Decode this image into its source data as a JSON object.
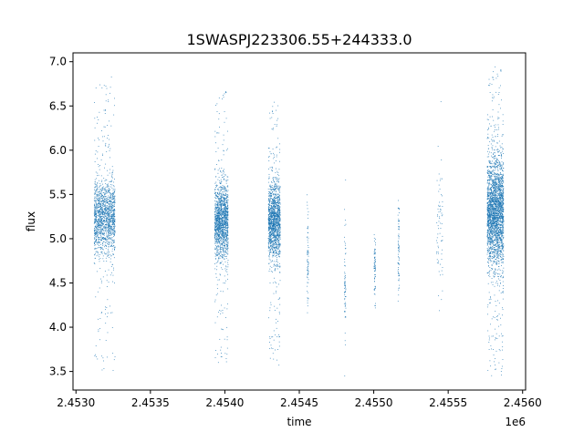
{
  "chart_data": {
    "type": "scatter",
    "title": "1SWASPJ223306.55+244333.0",
    "xlabel": "time",
    "ylabel": "flux",
    "x_offset_label": "1e6",
    "xlim": [
      2.45298,
      2.45602
    ],
    "ylim": [
      3.29,
      7.1
    ],
    "x_ticks": [
      2.453,
      2.4535,
      2.454,
      2.4545,
      2.455,
      2.4555,
      2.456
    ],
    "x_tick_labels": [
      "2.4530",
      "2.4535",
      "2.4540",
      "2.4545",
      "2.4550",
      "2.4555",
      "2.4560"
    ],
    "y_ticks": [
      3.5,
      4.0,
      4.5,
      5.0,
      5.5,
      6.0,
      6.5,
      7.0
    ],
    "y_tick_labels": [
      "3.5",
      "4.0",
      "4.5",
      "5.0",
      "5.5",
      "6.0",
      "6.5",
      "7.0"
    ],
    "grid": false,
    "marker_color": "#1f77b4",
    "series": [
      {
        "clusters": [
          {
            "x_min": 2.45312,
            "x_max": 2.45326,
            "y_center": 5.25,
            "y_spread": 0.35,
            "y_min": 3.5,
            "y_max": 6.85,
            "density": "high"
          },
          {
            "x_min": 2.45393,
            "x_max": 2.45402,
            "y_center": 5.2,
            "y_spread": 0.35,
            "y_min": 3.6,
            "y_max": 6.7,
            "density": "high"
          },
          {
            "x_min": 2.45429,
            "x_max": 2.45437,
            "y_center": 5.2,
            "y_spread": 0.35,
            "y_min": 3.5,
            "y_max": 6.55,
            "density": "high"
          },
          {
            "x_min": 2.45455,
            "x_max": 2.45456,
            "y_center": 4.8,
            "y_spread": 0.5,
            "y_min": 4.1,
            "y_max": 5.5,
            "density": "low"
          },
          {
            "x_min": 2.4548,
            "x_max": 2.45481,
            "y_center": 4.5,
            "y_spread": 0.5,
            "y_min": 3.45,
            "y_max": 5.7,
            "density": "low"
          },
          {
            "x_min": 2.455,
            "x_max": 2.45501,
            "y_center": 4.7,
            "y_spread": 0.3,
            "y_min": 4.2,
            "y_max": 5.05,
            "density": "low"
          },
          {
            "x_min": 2.45516,
            "x_max": 2.45517,
            "y_center": 4.9,
            "y_spread": 0.4,
            "y_min": 4.3,
            "y_max": 5.55,
            "density": "low"
          },
          {
            "x_min": 2.45542,
            "x_max": 2.45546,
            "y_center": 5.0,
            "y_spread": 0.6,
            "y_min": 4.05,
            "y_max": 6.6,
            "density": "low"
          },
          {
            "x_min": 2.45576,
            "x_max": 2.45587,
            "y_center": 5.3,
            "y_spread": 0.5,
            "y_min": 3.45,
            "y_max": 6.95,
            "density": "very-high"
          }
        ]
      }
    ]
  }
}
